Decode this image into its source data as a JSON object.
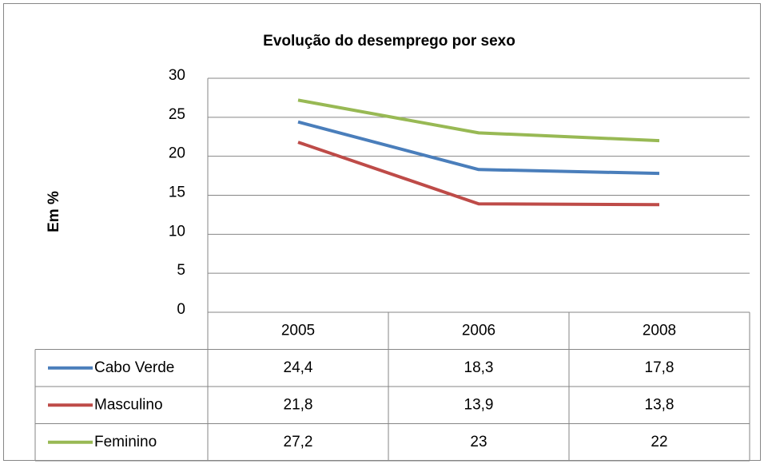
{
  "chart_data": {
    "type": "line",
    "title": "Evolução do desemprego por sexo",
    "y_label": "Em %",
    "categories": [
      "2005",
      "2006",
      "2008"
    ],
    "series": [
      {
        "name": "Cabo Verde",
        "color": "#4a7ebb",
        "values": [
          24.4,
          18.3,
          17.8
        ],
        "value_labels": [
          "24,4",
          "18,3",
          "17,8"
        ]
      },
      {
        "name": "Masculino",
        "color": "#be4b48",
        "values": [
          21.8,
          13.9,
          13.8
        ],
        "value_labels": [
          "21,8",
          "13,9",
          "13,8"
        ]
      },
      {
        "name": "Feminino",
        "color": "#98b954",
        "values": [
          27.2,
          23,
          22
        ],
        "value_labels": [
          "27,2",
          "23",
          "22"
        ]
      }
    ],
    "ylim": [
      0,
      30
    ],
    "yticks": [
      0,
      5,
      10,
      15,
      20,
      25,
      30
    ],
    "grid": true
  }
}
